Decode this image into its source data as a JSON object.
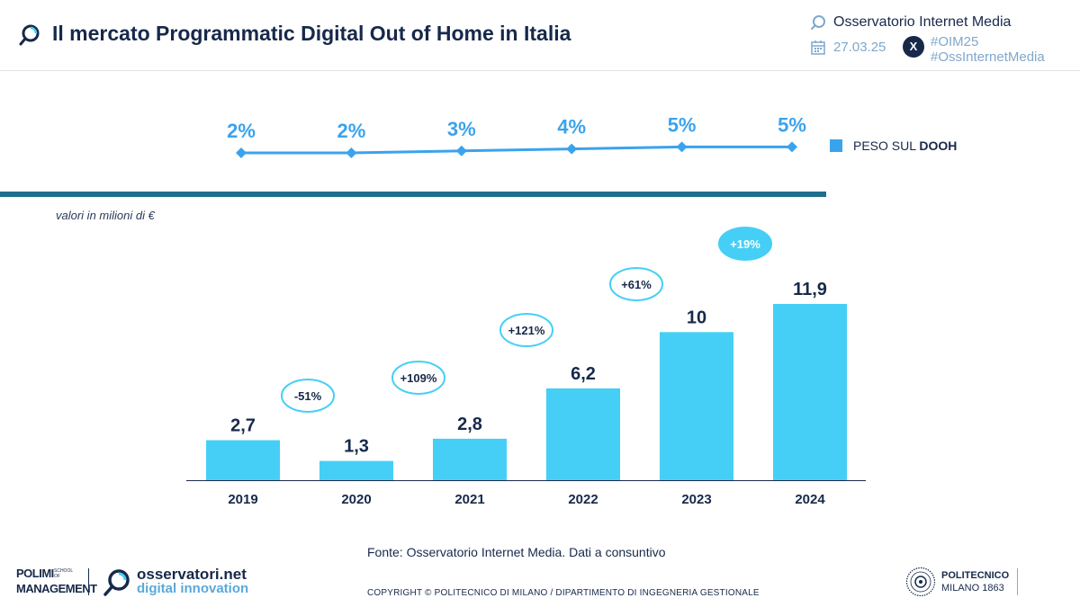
{
  "header": {
    "title": "Il mercato Programmatic Digital Out of Home in Italia",
    "brand": "Osservatorio Internet Media",
    "date": "27.03.25",
    "hashtag1": "#OIM25",
    "hashtag2": "#OssInternetMedia",
    "x_icon_glyph": "X"
  },
  "legend": {
    "label_prefix": "PESO SUL ",
    "label_bold": "DOOH",
    "color": "#3aa3ee"
  },
  "units_note": "valori in milioni di €",
  "chart_data": [
    {
      "type": "line",
      "categories": [
        "2019",
        "2020",
        "2021",
        "2022",
        "2023",
        "2024"
      ],
      "values": [
        2,
        2,
        3,
        4,
        5,
        5
      ],
      "labels": [
        "2%",
        "2%",
        "3%",
        "4%",
        "5%",
        "5%"
      ],
      "series_name": "PESO SUL DOOH",
      "color": "#3aa3ee"
    },
    {
      "type": "bar",
      "categories": [
        "2019",
        "2020",
        "2021",
        "2022",
        "2023",
        "2024"
      ],
      "values": [
        2.7,
        1.3,
        2.8,
        6.2,
        10,
        11.9
      ],
      "labels": [
        "2,7",
        "1,3",
        "2,8",
        "6,2",
        "10",
        "11,9"
      ],
      "growth": [
        {
          "to": "2020",
          "label": "-51%"
        },
        {
          "to": "2021",
          "label": "+109%"
        },
        {
          "to": "2022",
          "label": "+121%"
        },
        {
          "to": "2023",
          "label": "+61%"
        },
        {
          "to": "2024",
          "label": "+19%"
        }
      ],
      "ylim": [
        0,
        12
      ],
      "color": "#45cff6"
    }
  ],
  "footer": {
    "source": "Fonte: Osservatorio Internet Media. Dati a consuntivo",
    "copyright": "COPYRIGHT © POLITECNICO DI MILANO / DIPARTIMENTO DI INGEGNERIA GESTIONALE",
    "polimi_line1": "POLIMI",
    "polimi_school": "SCHOOL OF",
    "polimi_line2": "MANAGEMENT",
    "oss_line1": "osservatori.net",
    "oss_line2": "digital innovation",
    "politecnico_line1": "POLITECNICO",
    "politecnico_line2": "MILANO 1863"
  }
}
